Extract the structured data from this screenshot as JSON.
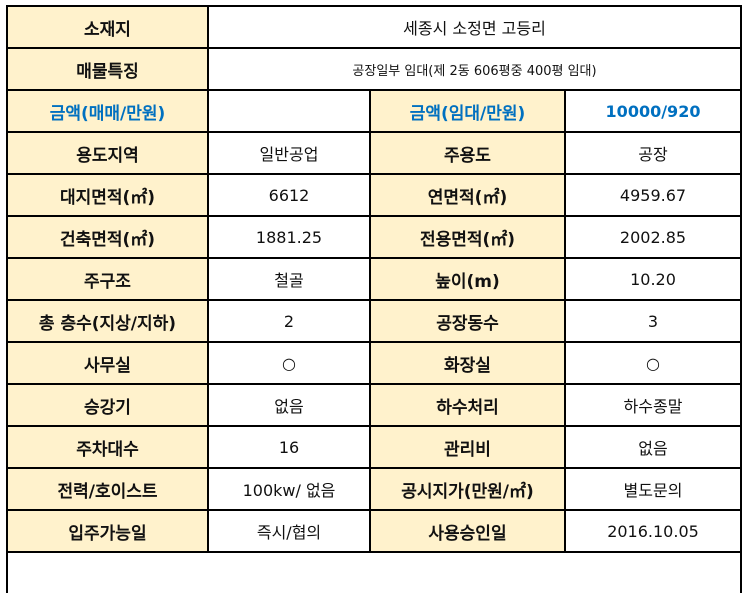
{
  "rows_full": [
    {
      "label": "소재지",
      "value": "세종시 소정면 고등리"
    },
    {
      "label": "매물특징",
      "value": "공장일부 임대(제 2동 606평중 400평 임대)"
    }
  ],
  "rows": [
    {
      "l1": "금액(매매/만원)",
      "v1": "",
      "l2": "금액(임대/만원)",
      "v2": "10000/920",
      "blue": true
    },
    {
      "l1": "용도지역",
      "v1": "일반공업",
      "l2": "주용도",
      "v2": "공장"
    },
    {
      "l1": "대지면적(㎡)",
      "v1": "6612",
      "l2": "연면적(㎡)",
      "v2": "4959.67"
    },
    {
      "l1": "건축면적(㎡)",
      "v1": "1881.25",
      "l2": "전용면적(㎡)",
      "v2": "2002.85"
    },
    {
      "l1": "주구조",
      "v1": "철골",
      "l2": "높이(m)",
      "v2": "10.20"
    },
    {
      "l1": "총 층수(지상/지하)",
      "v1": "2",
      "l2": "공장동수",
      "v2": "3"
    },
    {
      "l1": "사무실",
      "v1": "○",
      "l2": "화장실",
      "v2": "○"
    },
    {
      "l1": "승강기",
      "v1": "없음",
      "l2": "하수처리",
      "v2": "하수종말"
    },
    {
      "l1": "주차대수",
      "v1": "16",
      "l2": "관리비",
      "v2": "없음"
    },
    {
      "l1": "전력/호이스트",
      "v1": "100kw/ 없음",
      "l2": "공시지가(만원/㎡)",
      "v2": "별도문의"
    },
    {
      "l1": "입주가능일",
      "v1": "즉시/협의",
      "l2": "사용승인일",
      "v2": "2016.10.05"
    }
  ],
  "colors": {
    "label_bg": "#fff2cc",
    "accent_blue": "#0070c0"
  }
}
